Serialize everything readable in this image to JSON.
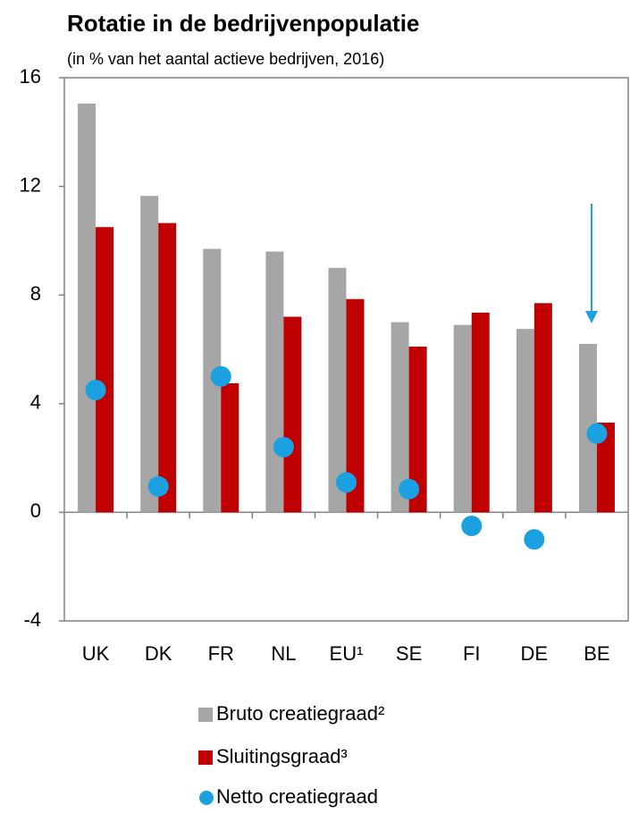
{
  "chart_data": {
    "type": "bar",
    "title": "Rotatie in de bedrijvenpopulatie",
    "subtitle": "(in % van het aantal actieve bedrijven, 2016)",
    "categories": [
      "UK",
      "DK",
      "FR",
      "NL",
      "EU¹",
      "SE",
      "FI",
      "DE",
      "BE"
    ],
    "series": [
      {
        "name": "Bruto creatiegraad²",
        "color": "#a6a6a6",
        "kind": "bar",
        "values": [
          15.05,
          11.65,
          9.7,
          9.6,
          9.0,
          7.0,
          6.9,
          6.75,
          6.2
        ]
      },
      {
        "name": "Sluitingsgraad³",
        "color": "#c00000",
        "kind": "bar",
        "values": [
          10.5,
          10.65,
          4.75,
          7.2,
          7.85,
          6.1,
          7.35,
          7.7,
          3.3
        ]
      },
      {
        "name": "Netto creatiegraad",
        "color": "#1ba1e2",
        "kind": "dot",
        "values": [
          4.5,
          0.95,
          5.0,
          2.4,
          1.1,
          0.85,
          -0.5,
          -1.0,
          2.9
        ]
      }
    ],
    "ylim": [
      -4,
      16
    ],
    "yticks": [
      -4,
      0,
      4,
      8,
      12,
      16
    ],
    "grid": false
  }
}
